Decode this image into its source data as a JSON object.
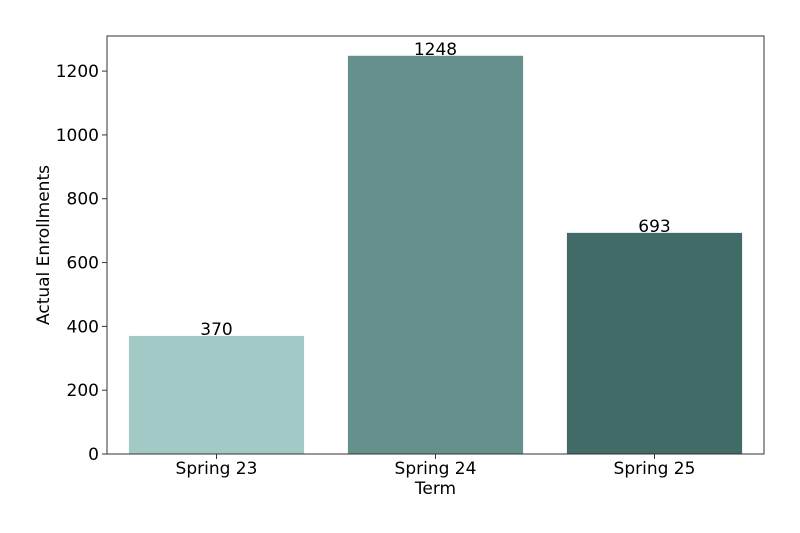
{
  "chart_data": {
    "type": "bar",
    "title": "",
    "xlabel": "Term",
    "ylabel": "Actual Enrollments",
    "categories": [
      "Spring 23",
      "Spring 24",
      "Spring 25"
    ],
    "values": [
      370,
      1248,
      693
    ],
    "data_labels": [
      "370",
      "1248",
      "693"
    ],
    "colors": [
      "#a3c9c6",
      "#66908c",
      "#426a66"
    ],
    "ylim": [
      0,
      1310
    ],
    "yticks": [
      0,
      200,
      400,
      600,
      800,
      1000,
      1200
    ],
    "ytick_labels": [
      "0",
      "200",
      "400",
      "600",
      "800",
      "1000",
      "1200"
    ],
    "grid": false,
    "legend": "none"
  }
}
